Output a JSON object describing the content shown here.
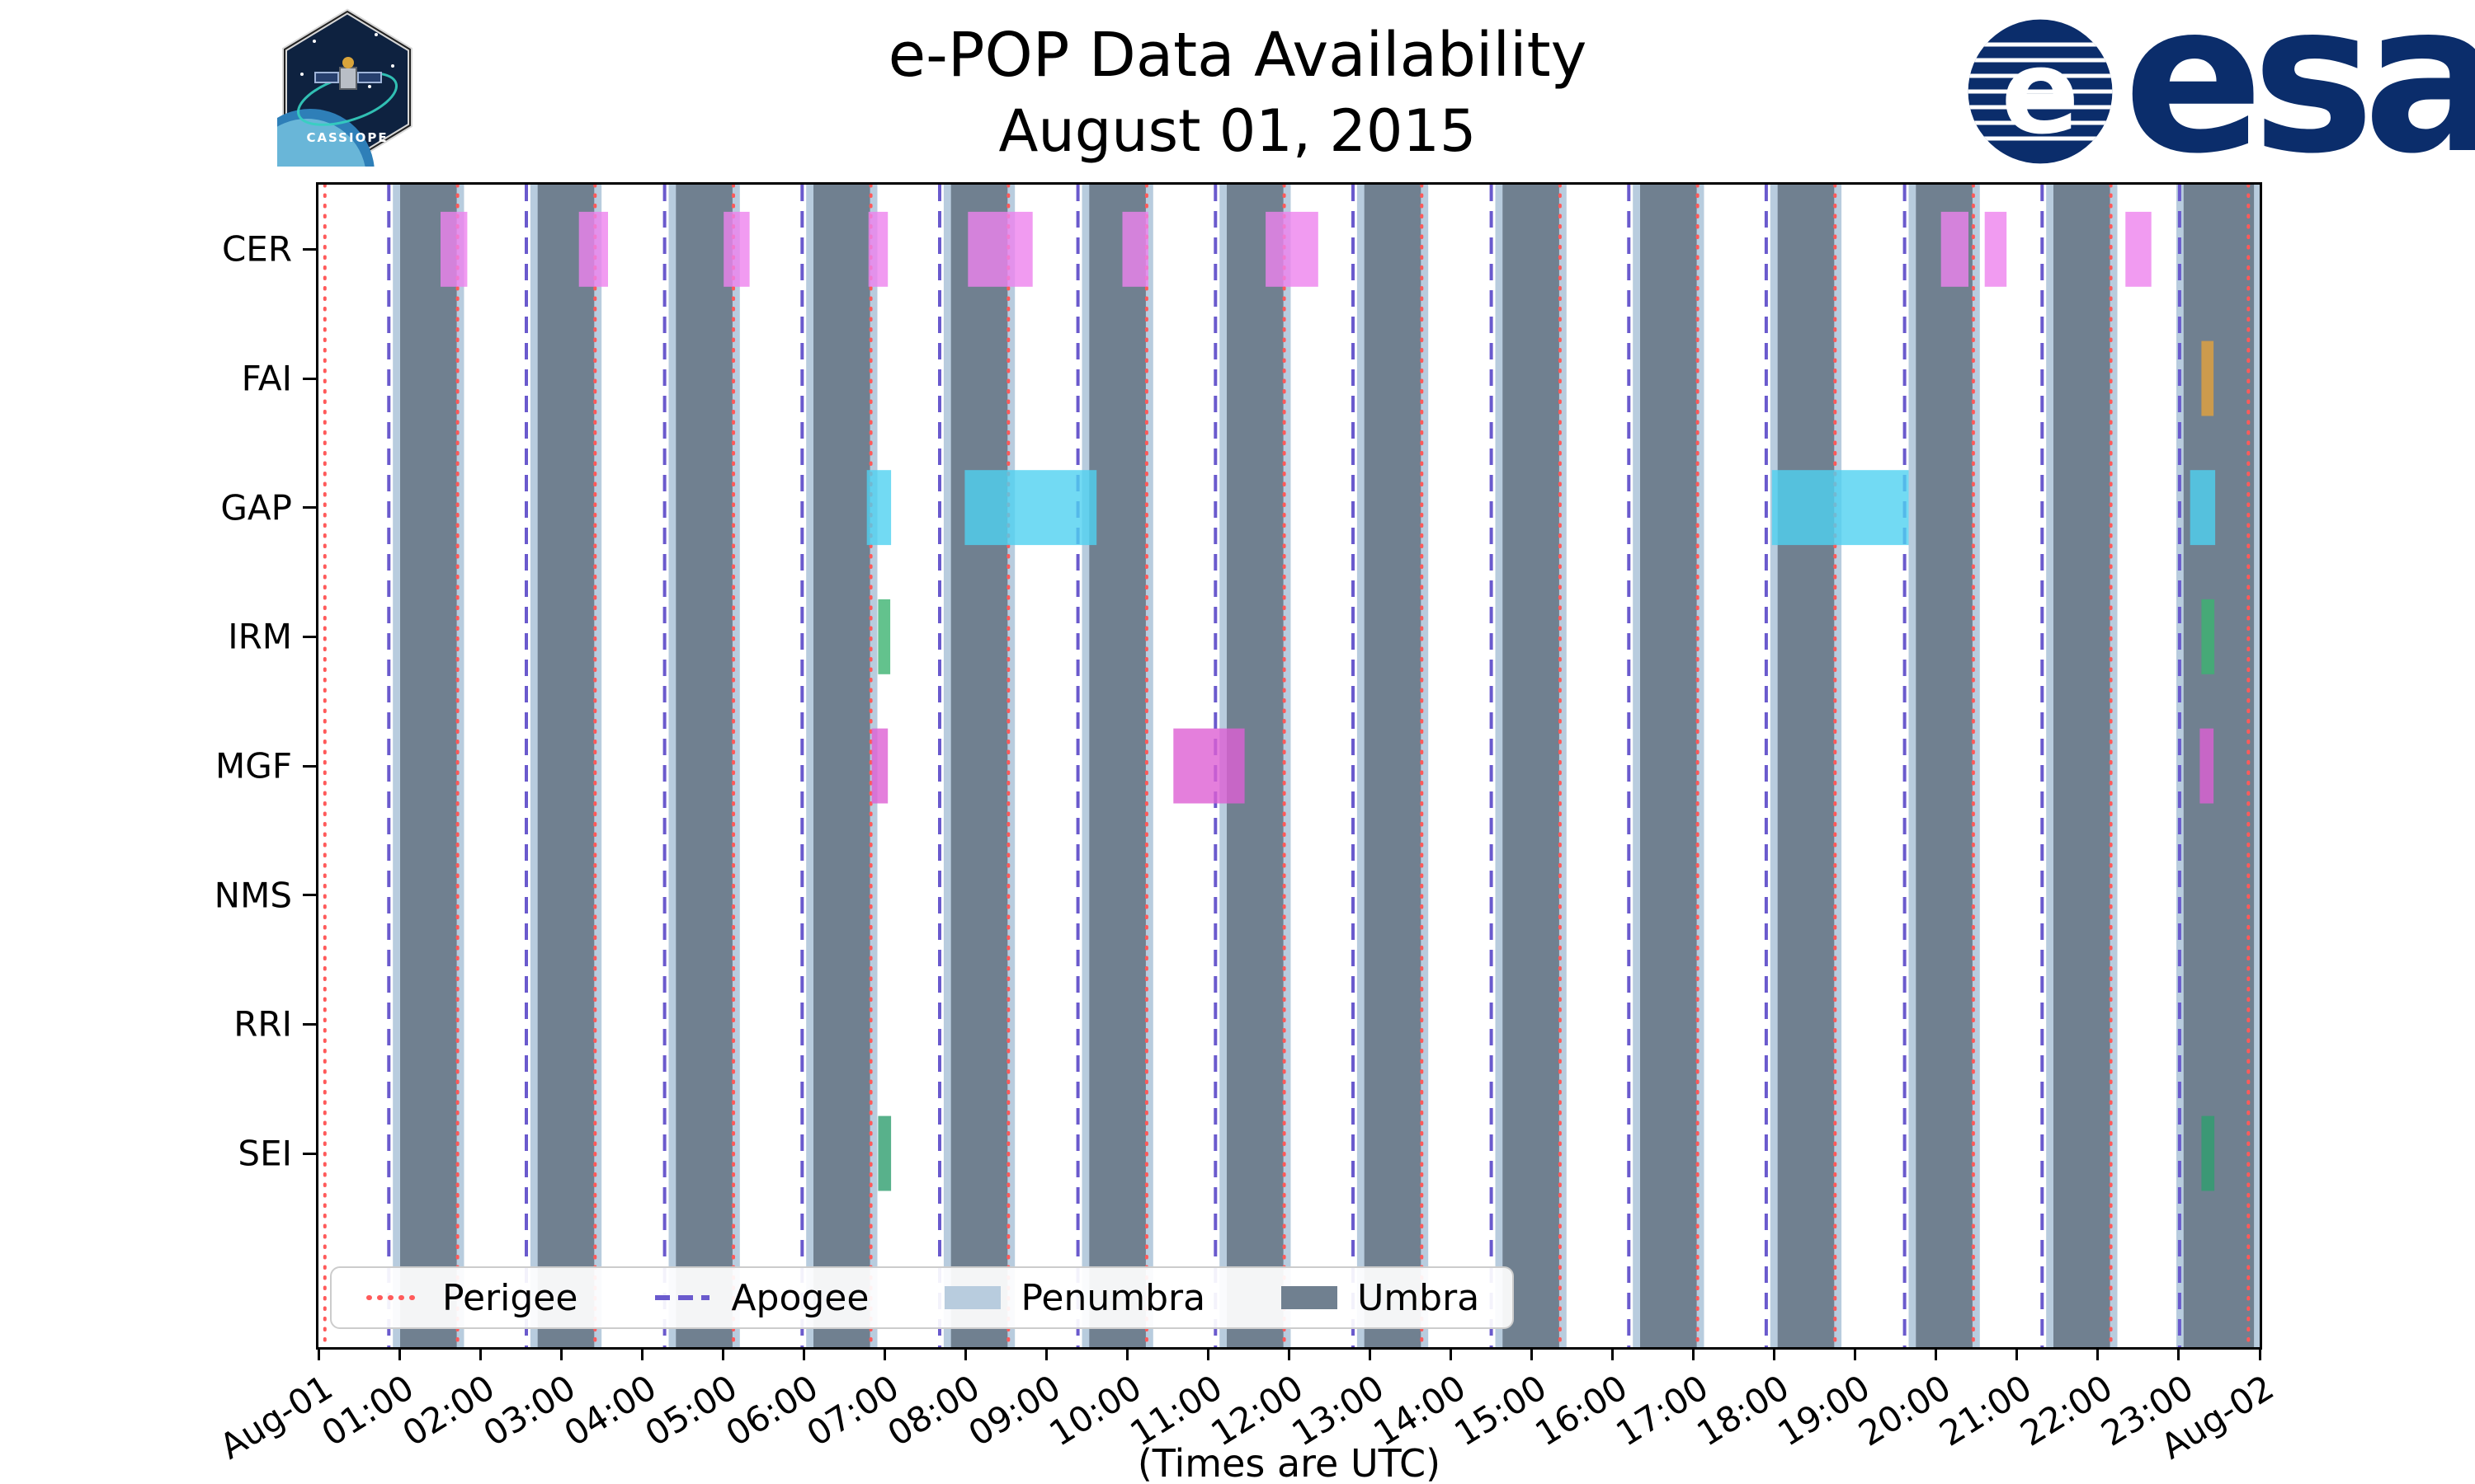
{
  "header": {
    "title": "e-POP Data Availability",
    "subtitle": "August 01, 2015",
    "cassiope_patch_label": "CASSIOPE",
    "esa_logo_text": "esa"
  },
  "chart_data": {
    "type": "bar",
    "subtype": "timeline-broken-barh",
    "title": "e-POP Data Availability",
    "subtitle": "August 01, 2015",
    "xlabel": "(Times are UTC)",
    "x_unit": "hours UTC on 2015-08-01",
    "xlim_hours": [
      0,
      24
    ],
    "x_tick_labels": [
      "Aug-01",
      "01:00",
      "02:00",
      "03:00",
      "04:00",
      "05:00",
      "06:00",
      "07:00",
      "08:00",
      "09:00",
      "10:00",
      "11:00",
      "12:00",
      "13:00",
      "14:00",
      "15:00",
      "16:00",
      "17:00",
      "18:00",
      "19:00",
      "20:00",
      "21:00",
      "22:00",
      "23:00",
      "Aug-02"
    ],
    "rows": [
      "CER",
      "FAI",
      "GAP",
      "IRM",
      "MGF",
      "NMS",
      "RRI",
      "SEI"
    ],
    "colors": {
      "umbra": "#708090",
      "penumbra": "#B8CCDE",
      "perigee": "#FF5A5A",
      "apogee": "#6A5ACD",
      "plot_border": "#000000",
      "esa_blue": "#0B2D6B"
    },
    "orbit_events": {
      "perigee_hours": [
        0.08,
        1.72,
        3.42,
        5.13,
        6.83,
        8.53,
        10.24,
        11.94,
        13.64,
        15.35,
        17.05,
        18.75,
        20.46,
        22.16,
        23.86
      ],
      "apogee_hours": [
        0.87,
        2.57,
        4.28,
        5.98,
        7.68,
        9.39,
        11.09,
        12.79,
        14.5,
        16.2,
        17.9,
        19.61,
        21.31,
        23.01
      ],
      "umbra_intervals_hours": [
        [
          1.01,
          1.71
        ],
        [
          2.71,
          3.41
        ],
        [
          4.42,
          5.12
        ],
        [
          6.12,
          6.82
        ],
        [
          7.82,
          8.52
        ],
        [
          9.53,
          10.23
        ],
        [
          11.23,
          11.93
        ],
        [
          12.93,
          13.63
        ],
        [
          14.64,
          15.34
        ],
        [
          16.34,
          17.04
        ],
        [
          18.04,
          18.74
        ],
        [
          19.75,
          20.45
        ],
        [
          21.45,
          22.15
        ],
        [
          23.06,
          23.93
        ]
      ],
      "penumbra_pad_hours": 0.09
    },
    "availability": [
      {
        "instrument": "CER",
        "color": "#EE82EE",
        "intervals": [
          [
            1.51,
            1.84
          ],
          [
            3.22,
            3.58
          ],
          [
            5.01,
            5.33
          ],
          [
            6.8,
            7.04
          ],
          [
            8.03,
            8.83
          ],
          [
            9.94,
            10.26
          ],
          [
            11.71,
            12.36
          ],
          [
            20.06,
            20.4
          ],
          [
            20.6,
            20.87
          ],
          [
            22.34,
            22.66
          ]
        ]
      },
      {
        "instrument": "FAI",
        "color": "#E3A13C",
        "intervals": [
          [
            23.28,
            23.43
          ]
        ]
      },
      {
        "instrument": "GAP",
        "color": "#4FD1F0",
        "intervals": [
          [
            6.78,
            7.08
          ],
          [
            7.99,
            9.62
          ],
          [
            17.97,
            19.66
          ],
          [
            23.14,
            23.45
          ]
        ]
      },
      {
        "instrument": "IRM",
        "color": "#3CB371",
        "intervals": [
          [
            6.92,
            7.07
          ],
          [
            23.28,
            23.44
          ]
        ]
      },
      {
        "instrument": "MGF",
        "color": "#DD5FD3",
        "intervals": [
          [
            6.84,
            7.04
          ],
          [
            10.57,
            11.45
          ],
          [
            23.26,
            23.43
          ]
        ]
      },
      {
        "instrument": "NMS",
        "color": "#999999",
        "intervals": []
      },
      {
        "instrument": "RRI",
        "color": "#999999",
        "intervals": []
      },
      {
        "instrument": "SEI",
        "color": "#2E9E6E",
        "intervals": [
          [
            6.92,
            7.08
          ],
          [
            23.28,
            23.44
          ]
        ]
      }
    ],
    "legend": [
      {
        "label": "Perigee",
        "style": "dotted-line",
        "color": "#FF5A5A"
      },
      {
        "label": "Apogee",
        "style": "dashed-line",
        "color": "#6A5ACD"
      },
      {
        "label": "Penumbra",
        "style": "patch",
        "color": "#B8CCDE"
      },
      {
        "label": "Umbra",
        "style": "patch",
        "color": "#708090"
      }
    ]
  }
}
